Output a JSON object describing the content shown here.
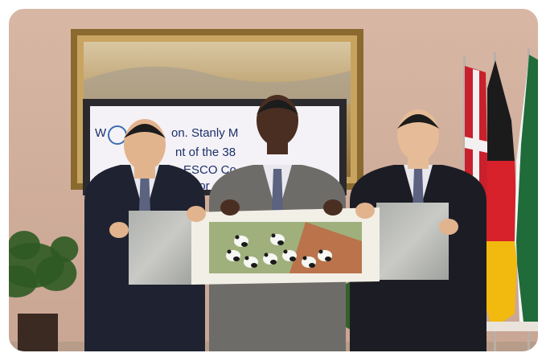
{
  "screen": {
    "lines": [
      "W",
      "on. Stanly M",
      "nt of the 38",
      "ESCO Co",
      "lor"
    ]
  }
}
